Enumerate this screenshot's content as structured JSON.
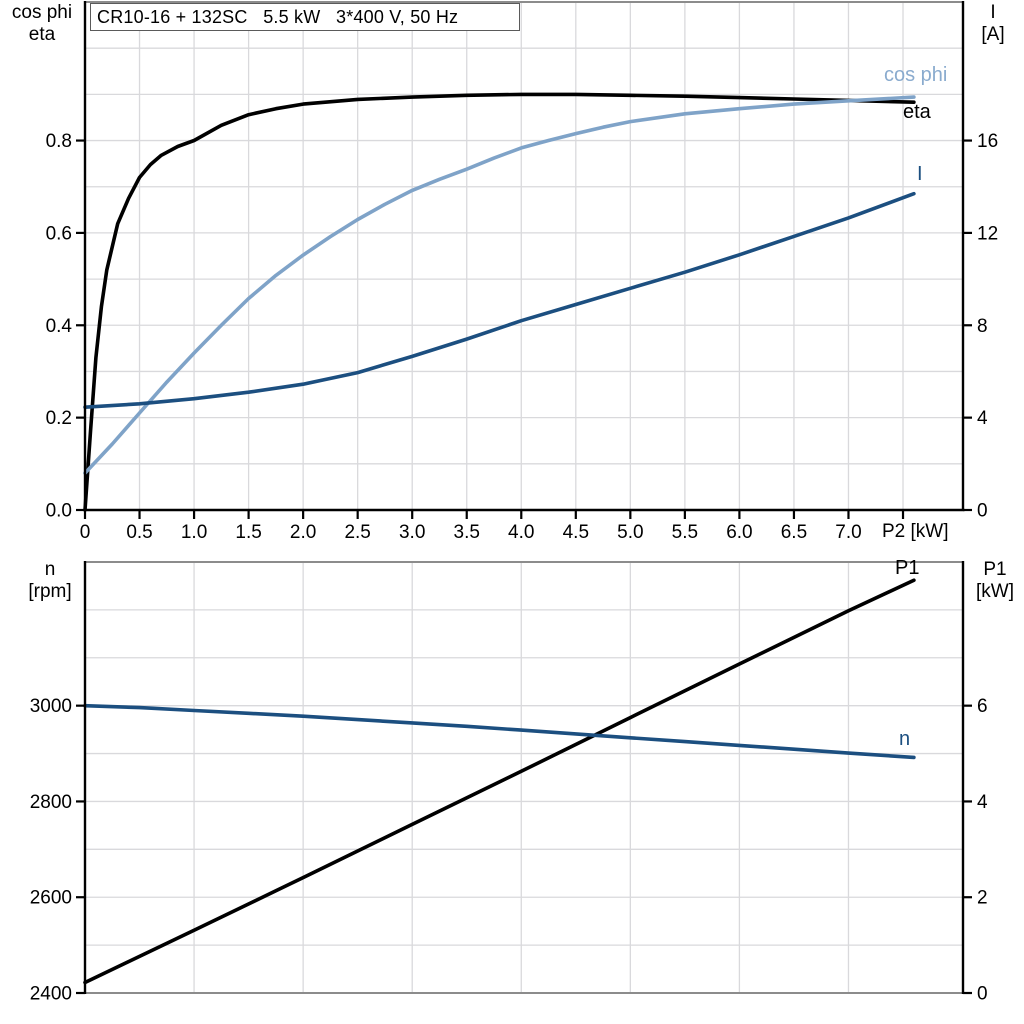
{
  "background": "#ffffff",
  "labels": {
    "top_left_1": "cos phi",
    "top_left_2": "eta",
    "top_right_1": "I",
    "top_right_2": "[A]",
    "x_axis_label": "P2 [kW]",
    "bottom_left_1": "n",
    "bottom_left_2": "[rpm]",
    "bottom_right_1": "P1",
    "bottom_right_2": "[kW]",
    "curve_cosphi": "cos phi",
    "curve_eta": "eta",
    "curve_I": "I",
    "curve_P1": "P1",
    "curve_n": "n"
  },
  "colors": {
    "cosphi": "#7FA3C8",
    "cosphi_label": "#8AABCE",
    "navy": "#1C4F80",
    "black": "#000000",
    "grid": "#d9d9dc",
    "frame": "#8c8c8c"
  },
  "chart_data": [
    {
      "type": "line",
      "title": "CR10-16 + 132SC   5.5 kW   3*400 V, 50 Hz",
      "x_axis": {
        "label": "P2 [kW]",
        "range": [
          0,
          8.05
        ],
        "tick_values": [
          0,
          0.5,
          1.0,
          1.5,
          2.0,
          2.5,
          3.0,
          3.5,
          4.0,
          4.5,
          5.0,
          5.5,
          6.0,
          6.5,
          7.0,
          7.5
        ],
        "tick_labels": [
          "0",
          "0.5",
          "1.0",
          "1.5",
          "2.0",
          "2.5",
          "3.0",
          "3.5",
          "4.0",
          "4.5",
          "5.0",
          "5.5",
          "6.0",
          "6.5",
          "7.0",
          ""
        ]
      },
      "y_left": {
        "label": "cos phi / eta",
        "range": [
          0,
          1.1
        ],
        "grid_step": 0.1,
        "tick_values": [
          0,
          0.2,
          0.4,
          0.6,
          0.8
        ],
        "tick_labels": [
          "0.0",
          "0.2",
          "0.4",
          "0.6",
          "0.8"
        ]
      },
      "y_right": {
        "label": "I [A]",
        "range": [
          0,
          22
        ],
        "tick_values": [
          0,
          4,
          8,
          12,
          16
        ],
        "tick_labels": [
          "0",
          "4",
          "8",
          "12",
          "16"
        ]
      },
      "series": [
        {
          "name": "eta",
          "axis": "left",
          "color": "#000000",
          "points": [
            [
              0,
              0
            ],
            [
              0.05,
              0.17
            ],
            [
              0.1,
              0.33
            ],
            [
              0.15,
              0.44
            ],
            [
              0.2,
              0.52
            ],
            [
              0.3,
              0.62
            ],
            [
              0.4,
              0.675
            ],
            [
              0.5,
              0.72
            ],
            [
              0.6,
              0.748
            ],
            [
              0.7,
              0.768
            ],
            [
              0.85,
              0.787
            ],
            [
              1.0,
              0.8
            ],
            [
              1.25,
              0.833
            ],
            [
              1.5,
              0.856
            ],
            [
              1.75,
              0.869
            ],
            [
              2.0,
              0.879
            ],
            [
              2.5,
              0.889
            ],
            [
              3.0,
              0.894
            ],
            [
              3.5,
              0.898
            ],
            [
              4.0,
              0.9
            ],
            [
              4.5,
              0.9
            ],
            [
              5.0,
              0.898
            ],
            [
              5.5,
              0.896
            ],
            [
              6.0,
              0.893
            ],
            [
              6.5,
              0.89
            ],
            [
              7.0,
              0.887
            ],
            [
              7.6,
              0.883
            ]
          ]
        },
        {
          "name": "cos phi",
          "axis": "left",
          "color": "#7FA3C8",
          "points": [
            [
              0,
              0.08
            ],
            [
              0.25,
              0.143
            ],
            [
              0.5,
              0.21
            ],
            [
              0.75,
              0.277
            ],
            [
              1.0,
              0.34
            ],
            [
              1.25,
              0.4
            ],
            [
              1.5,
              0.458
            ],
            [
              1.75,
              0.508
            ],
            [
              2.0,
              0.552
            ],
            [
              2.25,
              0.592
            ],
            [
              2.5,
              0.629
            ],
            [
              2.75,
              0.662
            ],
            [
              3.0,
              0.692
            ],
            [
              3.25,
              0.716
            ],
            [
              3.5,
              0.738
            ],
            [
              3.75,
              0.762
            ],
            [
              4.0,
              0.784
            ],
            [
              4.25,
              0.8
            ],
            [
              4.5,
              0.815
            ],
            [
              4.75,
              0.829
            ],
            [
              5.0,
              0.841
            ],
            [
              5.5,
              0.858
            ],
            [
              6.0,
              0.869
            ],
            [
              6.5,
              0.879
            ],
            [
              7.0,
              0.886
            ],
            [
              7.6,
              0.894
            ]
          ]
        },
        {
          "name": "I",
          "axis": "right",
          "color": "#1C4F80",
          "points": [
            [
              0,
              4.45
            ],
            [
              0.5,
              4.6
            ],
            [
              1.0,
              4.82
            ],
            [
              1.5,
              5.1
            ],
            [
              2.0,
              5.45
            ],
            [
              2.5,
              5.95
            ],
            [
              3.0,
              6.65
            ],
            [
              3.5,
              7.4
            ],
            [
              4.0,
              8.2
            ],
            [
              4.5,
              8.9
            ],
            [
              5.0,
              9.6
            ],
            [
              5.5,
              10.3
            ],
            [
              6.0,
              11.05
            ],
            [
              6.5,
              11.85
            ],
            [
              7.0,
              12.65
            ],
            [
              7.6,
              13.7
            ]
          ]
        }
      ]
    },
    {
      "type": "line",
      "title": "",
      "x_axis": {
        "label": "",
        "range": [
          0,
          8.05
        ],
        "tick_values": [],
        "tick_labels": []
      },
      "y_left": {
        "label": "n [rpm]",
        "range": [
          2400,
          3300
        ],
        "grid_step": 100,
        "tick_values": [
          2400,
          2600,
          2800,
          3000
        ],
        "tick_labels": [
          "2400",
          "2600",
          "2800",
          "3000"
        ]
      },
      "y_right": {
        "label": "P1 [kW]",
        "range": [
          0,
          9
        ],
        "tick_values": [
          0,
          2,
          4,
          6
        ],
        "tick_labels": [
          "0",
          "2",
          "4",
          "6"
        ]
      },
      "series": [
        {
          "name": "P1",
          "axis": "right",
          "color": "#000000",
          "points": [
            [
              0,
              0.22
            ],
            [
              1,
              1.31
            ],
            [
              2,
              2.41
            ],
            [
              3,
              3.52
            ],
            [
              4,
              4.63
            ],
            [
              5,
              5.75
            ],
            [
              6,
              6.87
            ],
            [
              7,
              7.98
            ],
            [
              7.6,
              8.62
            ]
          ]
        },
        {
          "name": "n",
          "axis": "left",
          "color": "#1C4F80",
          "points": [
            [
              0,
              3000
            ],
            [
              0.5,
              2996
            ],
            [
              1,
              2990
            ],
            [
              1.5,
              2984
            ],
            [
              2,
              2978
            ],
            [
              2.5,
              2971
            ],
            [
              3,
              2964
            ],
            [
              3.5,
              2957
            ],
            [
              4,
              2949
            ],
            [
              4.5,
              2941
            ],
            [
              5,
              2933
            ],
            [
              5.5,
              2925
            ],
            [
              6,
              2917
            ],
            [
              6.5,
              2909
            ],
            [
              7,
              2901
            ],
            [
              7.6,
              2892
            ]
          ]
        }
      ]
    }
  ]
}
